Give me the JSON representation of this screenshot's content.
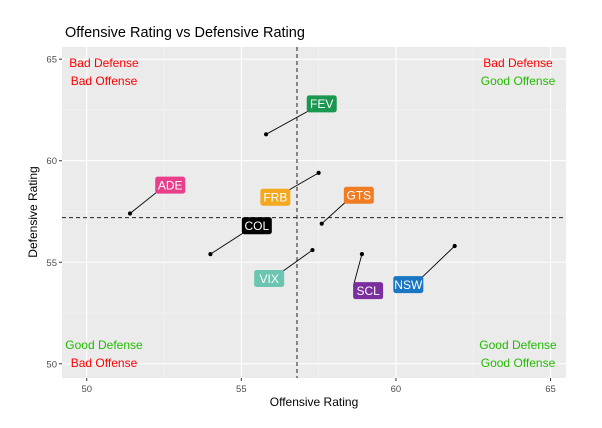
{
  "chart_data": {
    "type": "scatter",
    "title": "Offensive Rating vs Defensive Rating",
    "xlabel": "Offensive Rating",
    "ylabel": "Defensive Rating",
    "xlim": [
      49.2,
      65.5
    ],
    "ylim": [
      49.3,
      65.6
    ],
    "xticks": [
      50,
      55,
      60,
      65
    ],
    "yticks": [
      50,
      55,
      60,
      65
    ],
    "grid": true,
    "reference_lines": {
      "x": 56.8,
      "y": 57.2
    },
    "points": [
      {
        "team": "FEV",
        "x": 55.8,
        "y": 61.3,
        "color": "#1a9850",
        "label_x": 57.6,
        "label_y": 62.8
      },
      {
        "team": "ADE",
        "x": 51.4,
        "y": 57.4,
        "color": "#e83e8c",
        "label_x": 52.7,
        "label_y": 58.8
      },
      {
        "team": "FRB",
        "x": 57.5,
        "y": 59.4,
        "color": "#f4a81d",
        "label_x": 56.1,
        "label_y": 58.2
      },
      {
        "team": "GTS",
        "x": 57.6,
        "y": 56.9,
        "color": "#f07d24",
        "label_x": 58.8,
        "label_y": 58.3
      },
      {
        "team": "COL",
        "x": 54.0,
        "y": 55.4,
        "color": "#000000",
        "label_x": 55.5,
        "label_y": 56.8
      },
      {
        "team": "VIX",
        "x": 57.3,
        "y": 55.6,
        "color": "#6cc5b0",
        "label_x": 55.9,
        "label_y": 54.2
      },
      {
        "team": "SCL",
        "x": 58.9,
        "y": 55.4,
        "color": "#7b2f9e",
        "label_x": 59.1,
        "label_y": 53.6
      },
      {
        "team": "NSW",
        "x": 61.9,
        "y": 55.8,
        "color": "#1976c2",
        "label_x": 60.4,
        "label_y": 53.9
      }
    ],
    "quadrant_labels": [
      {
        "id": "tl",
        "line1": "Bad Defense",
        "line2": "Bad Offense",
        "color1": "#ff0000",
        "color2": "#ff0000"
      },
      {
        "id": "tr",
        "line1": "Bad Defense",
        "line2": "Good Offense",
        "color1": "#ff0000",
        "color2": "#22bb00"
      },
      {
        "id": "bl",
        "line1": "Good Defense",
        "line2": "Bad Offense",
        "color1": "#22bb00",
        "color2": "#ff0000"
      },
      {
        "id": "br",
        "line1": "Good Defense",
        "line2": "Good Offense",
        "color1": "#22bb00",
        "color2": "#22bb00"
      }
    ]
  }
}
